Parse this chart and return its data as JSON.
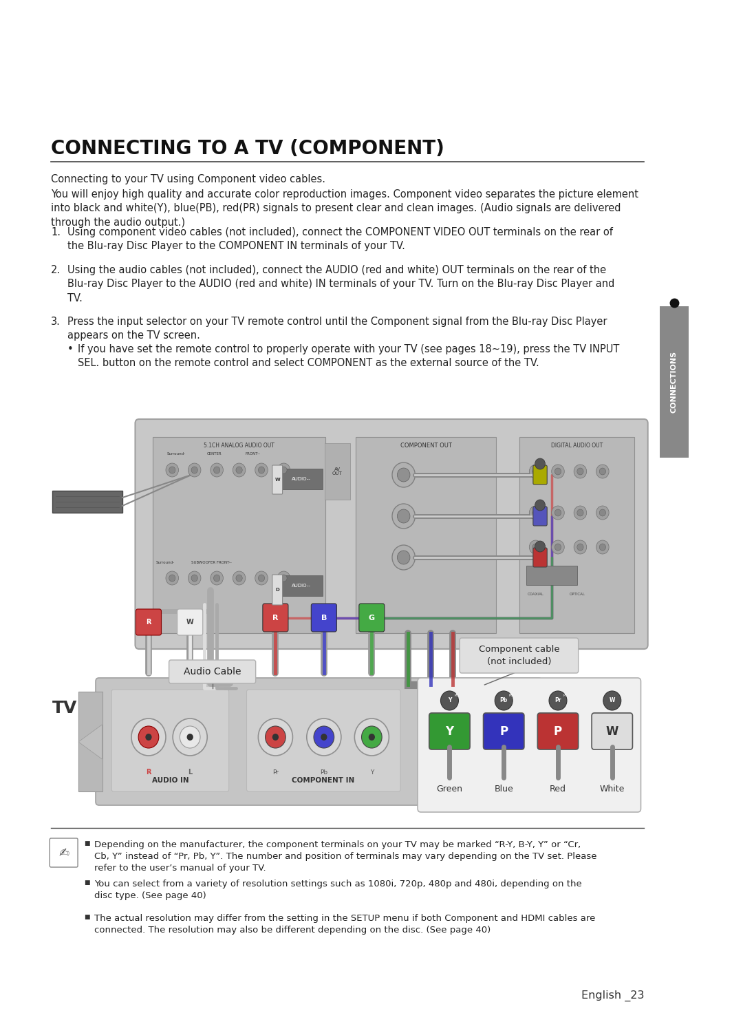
{
  "bg_color": "#ffffff",
  "title": "CONNECTING TO A TV (COMPONENT)",
  "page_number": "English _23",
  "subtitle": "Connecting to your TV using Component video cables.",
  "body_para": "You will enjoy high quality and accurate color reproduction images. Component video separates the picture element\ninto black and white(Y), blue(PB), red(PR) signals to present clear and clean images. (Audio signals are delivered\nthrough the audio output.)",
  "item1_plain": "Using component video cables (not included), connect the ",
  "item1_bold1": "COMPONENT VIDEO OUT",
  "item1_mid": " terminals on the rear of\nthe Blu-ray Disc Player to the ",
  "item1_bold2": "COMPONENT IN",
  "item1_end": " terminals of your TV.",
  "item2_plain": "Using the audio cables (not included), connect the ",
  "item2_bold1": "AUDIO (red and white) OUT",
  "item2_mid": " terminals on the rear of the\nBlu-ray Disc Player to the ",
  "item2_bold2": "AUDIO (red and white) IN",
  "item2_end": " terminals of your TV. Turn on the Blu-ray Disc Player and\nTV.",
  "item3": "Press the input selector on your TV remote control until the Component signal from the Blu-ray Disc Player\nappears on the TV screen.",
  "bullet_plain": "If you have set the remote control to properly operate with your TV (see pages 18~19), press the ",
  "bullet_bold": "TV INPUT\nSEL.",
  "bullet_end": " button on the remote control and select COMPONENT as the external source of the TV.",
  "note1": "Depending on the manufacturer, the component terminals on your TV may be marked “R-Y, B-Y, Y” or “Cr,\nCb, Y” instead of “Pr, Pb, Y”. The number and position of terminals may vary depending on the TV set. Please\nrefer to the user’s manual of your TV.",
  "note2": "You can select from a variety of resolution settings such as 1080i, 720p, 480p and 480i, depending on the\ndisc type. (See page 40)",
  "note3": "The actual resolution may differ from the setting in the SETUP menu if both Component and HDMI cables are\nconnected. The resolution may also be different depending on the disc. (See page 40)",
  "diagram_bg": "#cbcbcb",
  "panel_bg": "#b5b5b5",
  "tv_bg": "#c8c8c8",
  "guide_bg": "#efefef"
}
